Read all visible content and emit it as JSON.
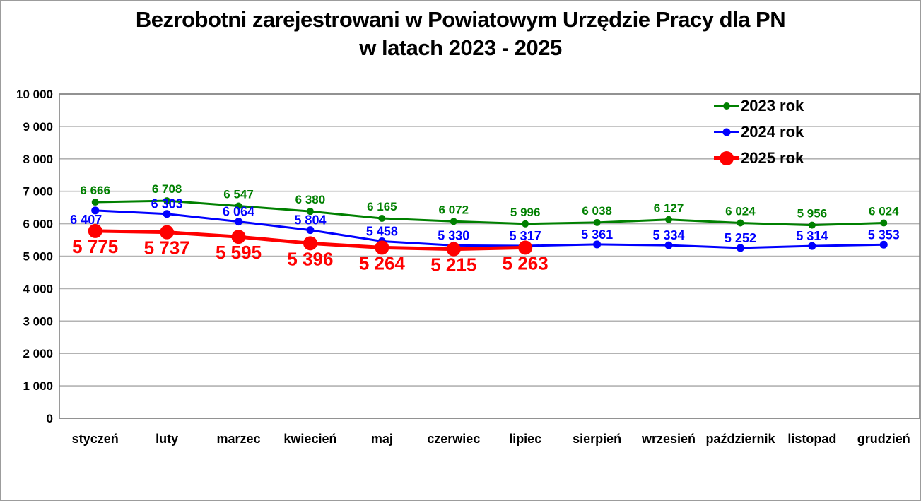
{
  "title": {
    "line1": "Bezrobotni zarejestrowani w Powiatowym Urzędzie Pracy dla PN",
    "line2": "w latach 2023 - 2025"
  },
  "chart_data": {
    "type": "line",
    "title": "Bezrobotni zarejestrowani w Powiatowym Urzędzie Pracy dla PN w latach 2023 - 2025",
    "xlabel": "",
    "ylabel": "",
    "categories": [
      "styczeń",
      "luty",
      "marzec",
      "kwiecień",
      "maj",
      "czerwiec",
      "lipiec",
      "sierpień",
      "wrzesień",
      "październik",
      "listopad",
      "grudzień"
    ],
    "series": [
      {
        "name": "2023 rok",
        "color": "#008000",
        "values": [
          6666,
          6708,
          6547,
          6380,
          6165,
          6072,
          5996,
          6038,
          6127,
          6024,
          5956,
          6024
        ],
        "labels": [
          "6 666",
          "6 708",
          "6 547",
          "6 380",
          "6 165",
          "6 072",
          "5 996",
          "6 038",
          "6 127",
          "6 024",
          "5 956",
          "6 024"
        ],
        "label_position": "above",
        "label_dy": -11,
        "label_font": 17,
        "marker_radius": 5,
        "line_width": 3
      },
      {
        "name": "2024 rok",
        "color": "#0000ff",
        "values": [
          6407,
          6303,
          6064,
          5804,
          5458,
          5330,
          5317,
          5361,
          5334,
          5252,
          5314,
          5353
        ],
        "labels": [
          "6 407",
          "6 303",
          "6 064",
          "5 804",
          "5 458",
          "5 330",
          "5 317",
          "5 361",
          "5 334",
          "5 252",
          "5 314",
          "5 353"
        ],
        "label_position": "above",
        "label_dy": -8,
        "label_font": 18,
        "marker_radius": 5.5,
        "line_width": 3,
        "label_exceptions": {
          "0": {
            "position": "below",
            "dx": -13,
            "dy": 19
          }
        }
      },
      {
        "name": "2025 rok",
        "color": "#ff0000",
        "values": [
          5775,
          5737,
          5595,
          5396,
          5264,
          5215,
          5263
        ],
        "labels": [
          "5 775",
          "5 737",
          "5 595",
          "5 396",
          "5 264",
          "5 215",
          "5 263"
        ],
        "label_position": "below",
        "label_dy": 31,
        "label_font": 26,
        "marker_radius": 10,
        "line_width": 5
      }
    ],
    "ylim": [
      0,
      10000
    ],
    "ytick_step": 1000,
    "ytick_labels": [
      "0",
      "1 000",
      "2 000",
      "3 000",
      "4 000",
      "5 000",
      "6 000",
      "7 000",
      "8 000",
      "9 000",
      "10 000"
    ],
    "grid": true,
    "legend_position": "top-right",
    "colors": {
      "gridline": "#b3b3b3",
      "plot_border": "#808080",
      "axis_text": "#000000"
    }
  }
}
